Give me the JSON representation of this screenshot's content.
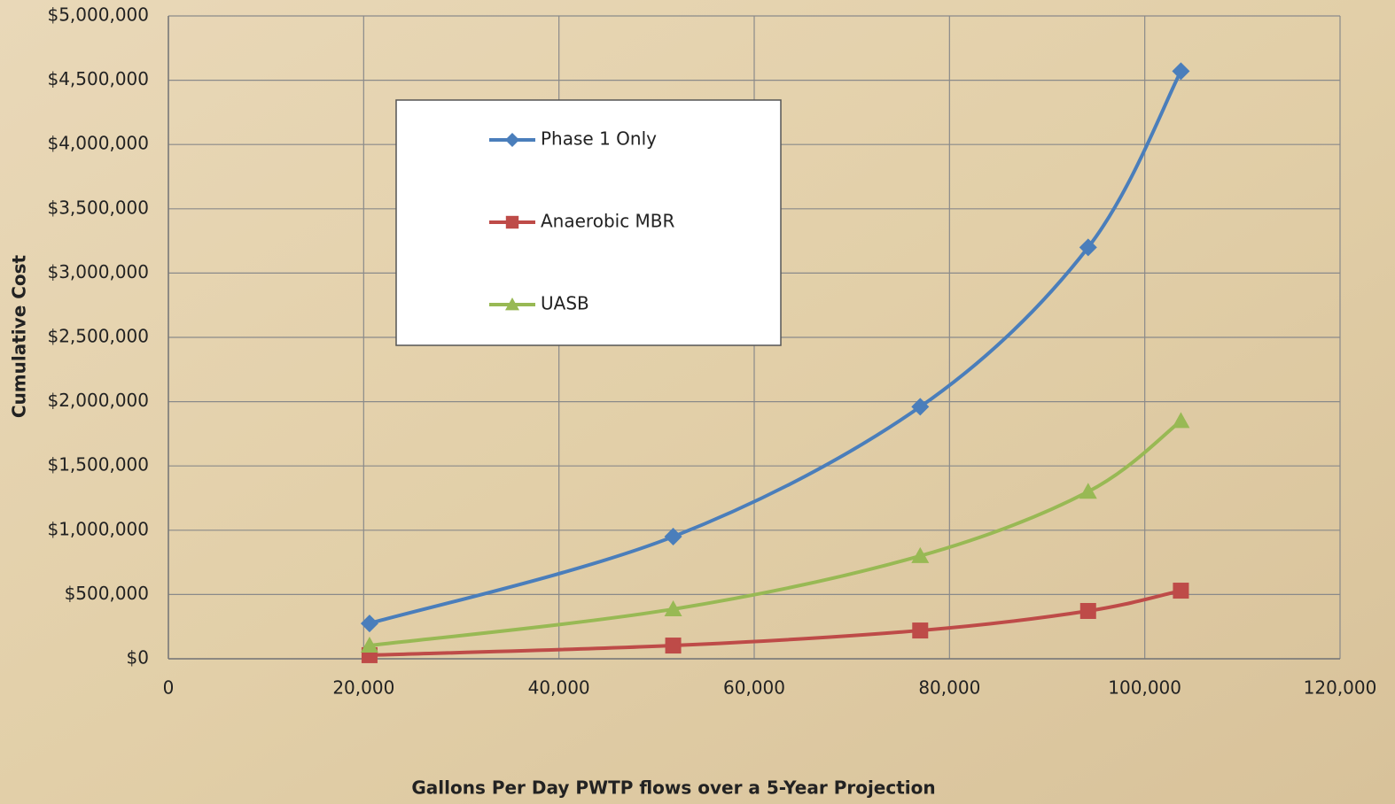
{
  "chart_data": {
    "type": "line",
    "x_label": "Gallons Per Day PWTP flows over a 5-Year Projection",
    "y_label": "Cumulative Cost",
    "x": [
      20600,
      51700,
      77000,
      94200,
      103700
    ],
    "series": [
      {
        "name": "Phase 1 Only",
        "color": "#4a7ebb",
        "marker": "diamond",
        "values": [
          275000,
          950000,
          1960000,
          3200000,
          4570000
        ]
      },
      {
        "name": "Anaerobic MBR",
        "color": "#be4b48",
        "marker": "square",
        "values": [
          28000,
          103000,
          220000,
          372000,
          530000
        ]
      },
      {
        "name": "UASB",
        "color": "#98b954",
        "marker": "triangle",
        "values": [
          103000,
          386000,
          800000,
          1300000,
          1850000
        ]
      }
    ],
    "xlim": [
      0,
      120000
    ],
    "xticks": [
      0,
      {
        "value": 20000,
        "label": "20,000"
      },
      {
        "value": 40000,
        "label": "40,000"
      },
      {
        "value": 60000,
        "label": "60,000"
      },
      {
        "value": 80000,
        "label": "80,000"
      },
      {
        "value": 100000,
        "label": "100,000"
      },
      {
        "value": 120000,
        "label": "120,000"
      }
    ],
    "ylim": [
      0,
      5000000
    ],
    "yticks": [
      {
        "value": 0,
        "label": "$0"
      },
      {
        "value": 500000,
        "label": "$500,000"
      },
      {
        "value": 1000000,
        "label": "$1,000,000"
      },
      {
        "value": 1500000,
        "label": "$1,500,000"
      },
      {
        "value": 2000000,
        "label": "$2,000,000"
      },
      {
        "value": 2500000,
        "label": "$2,500,000"
      },
      {
        "value": 3000000,
        "label": "$3,000,000"
      },
      {
        "value": 3500000,
        "label": "$3,500,000"
      },
      {
        "value": 4000000,
        "label": "$4,000,000"
      },
      {
        "value": 4500000,
        "label": "$4,500,000"
      },
      {
        "value": 5000000,
        "label": "$5,000,000"
      }
    ],
    "grid": true,
    "smooth": true
  }
}
